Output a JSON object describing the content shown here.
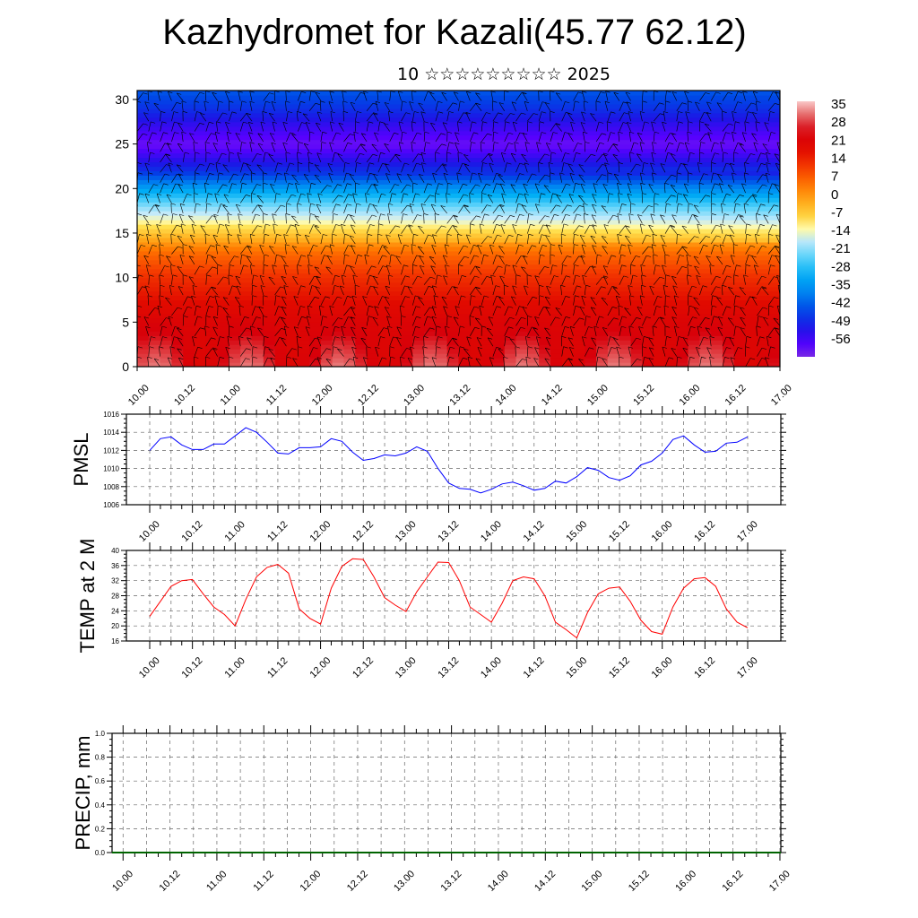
{
  "header": {
    "title": "Kazhydromet for Kazali(45.77 62.12)",
    "subtitle": "10 ☆☆☆☆☆☆☆☆☆ 2025"
  },
  "chart_data": [
    {
      "type": "heatmap",
      "title": "Kazhydromet for Kazali(45.77 62.12)",
      "subtitle": "10 ☆☆☆☆☆☆☆☆☆ 2025",
      "xlabel": "",
      "ylabel": "",
      "x_ticks": [
        "10.00",
        "10.12",
        "11.00",
        "11.12",
        "12.00",
        "12.12",
        "13.00",
        "13.12",
        "14.00",
        "14.12",
        "15.00",
        "15.12",
        "16.00",
        "16.12",
        "17.00"
      ],
      "ylim": [
        0,
        31
      ],
      "y_ticks": [
        0,
        5,
        10,
        15,
        20,
        25,
        30
      ],
      "colorbar_labels": [
        "35",
        "28",
        "21",
        "14",
        "7",
        "0",
        "-7",
        "-14",
        "-21",
        "-28",
        "-35",
        "-42",
        "-49",
        "-56"
      ],
      "colorbar_range": [
        -60,
        40
      ],
      "vertical_profile": [
        [
          0,
          30
        ],
        [
          5,
          25
        ],
        [
          10,
          16
        ],
        [
          13,
          8
        ],
        [
          16,
          -8
        ],
        [
          18,
          -18
        ],
        [
          20,
          -30
        ],
        [
          22,
          -45
        ],
        [
          25,
          -58
        ],
        [
          27,
          -52
        ],
        [
          29,
          -45
        ],
        [
          31,
          -40
        ]
      ],
      "wind_barbs": true
    },
    {
      "type": "line",
      "ylabel": "PMSL",
      "ylim": [
        1006,
        1016
      ],
      "y_ticks": [
        1006,
        1008,
        1010,
        1012,
        1014,
        1016
      ],
      "x_ticks": [
        "10.00",
        "10.12",
        "11.00",
        "11.12",
        "12.00",
        "12.12",
        "13.00",
        "13.12",
        "14.00",
        "14.12",
        "15.00",
        "15.12",
        "16.00",
        "16.12",
        "17.00"
      ],
      "series": [
        {
          "color": "#0000ff",
          "x_hours_step": 3,
          "values": [
            1012.0,
            1013.3,
            1013.5,
            1012.6,
            1012.1,
            1012.1,
            1012.7,
            1012.7,
            1013.6,
            1014.5,
            1014.0,
            1012.9,
            1011.7,
            1011.6,
            1012.3,
            1012.3,
            1012.4,
            1013.3,
            1013.0,
            1011.8,
            1010.9,
            1011.1,
            1011.5,
            1011.4,
            1011.7,
            1012.4,
            1011.9,
            1010.0,
            1008.4,
            1007.8,
            1007.7,
            1007.3,
            1007.7,
            1008.3,
            1008.5,
            1008.1,
            1007.6,
            1007.8,
            1008.6,
            1008.4,
            1009.1,
            1010.1,
            1009.8,
            1009.0,
            1008.7,
            1009.2,
            1010.4,
            1010.8,
            1011.7,
            1013.2,
            1013.6,
            1012.6,
            1011.8,
            1011.9,
            1012.8,
            1012.9,
            1013.5
          ]
        }
      ]
    },
    {
      "type": "line",
      "ylabel": "TEMP at 2 M",
      "ylim": [
        16,
        40
      ],
      "y_ticks": [
        16,
        20,
        24,
        28,
        32,
        36,
        40
      ],
      "x_ticks": [
        "10.00",
        "10.12",
        "11.00",
        "11.12",
        "12.00",
        "12.12",
        "13.00",
        "13.12",
        "14.00",
        "14.12",
        "15.00",
        "15.12",
        "16.00",
        "16.12",
        "17.00"
      ],
      "series": [
        {
          "color": "#ff0000",
          "x_hours_step": 3,
          "values": [
            22.5,
            26.5,
            30.5,
            32.0,
            32.3,
            28.5,
            25.0,
            23.0,
            20.0,
            27.0,
            33.0,
            35.5,
            36.3,
            34.0,
            24.5,
            22.0,
            20.5,
            30.0,
            35.8,
            37.8,
            37.6,
            33.0,
            27.5,
            25.5,
            23.8,
            29.0,
            33.0,
            36.9,
            36.8,
            32.0,
            25.0,
            23.0,
            21.0,
            26.0,
            32.0,
            33.0,
            32.5,
            28.0,
            21.0,
            19.0,
            16.8,
            23.5,
            28.5,
            30.0,
            30.3,
            26.5,
            21.5,
            18.5,
            17.8,
            25.0,
            30.0,
            32.5,
            32.8,
            30.5,
            24.5,
            21.0,
            19.5
          ]
        }
      ]
    },
    {
      "type": "line",
      "ylabel": "PRECIP, mm",
      "ylim": [
        0,
        1.0
      ],
      "y_ticks": [
        "0.0",
        "0.2",
        "0.4",
        "0.6",
        "0.8",
        "1.0"
      ],
      "x_ticks": [
        "10.00",
        "10.12",
        "11.00",
        "11.12",
        "12.00",
        "12.12",
        "13.00",
        "13.12",
        "14.00",
        "14.12",
        "15.00",
        "15.12",
        "16.00",
        "16.12",
        "17.00"
      ],
      "series": [
        {
          "color": "#006400",
          "x_hours_step": 3,
          "constant_value": 0.0
        }
      ]
    }
  ]
}
